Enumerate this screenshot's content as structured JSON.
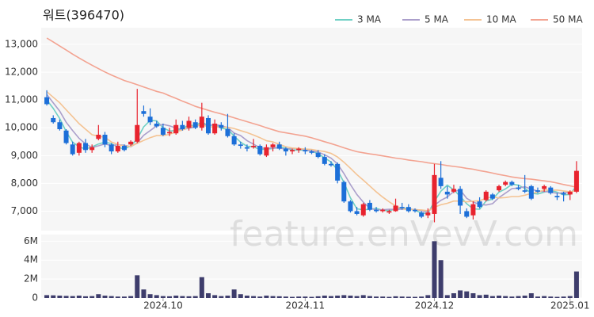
{
  "chart_data": {
    "type": "candlestick",
    "title": "워트(396470)",
    "watermark": "feature.enVevV.com",
    "categories": [
      null,
      null,
      null,
      null,
      null,
      null,
      null,
      null,
      null,
      null,
      null,
      null,
      null,
      null,
      null,
      null,
      null,
      null,
      "2024.10",
      null,
      null,
      null,
      null,
      null,
      null,
      null,
      null,
      null,
      null,
      null,
      null,
      null,
      null,
      null,
      null,
      null,
      null,
      null,
      null,
      null,
      "2024.11",
      null,
      null,
      null,
      null,
      null,
      null,
      null,
      null,
      null,
      null,
      null,
      null,
      null,
      null,
      null,
      null,
      null,
      null,
      null,
      "2024.12",
      null,
      null,
      null,
      null,
      null,
      null,
      null,
      null,
      null,
      null,
      null,
      null,
      null,
      null,
      null,
      null,
      null,
      null,
      null,
      null,
      "2025.01",
      null
    ],
    "open": [
      11100,
      10350,
      10200,
      9900,
      9400,
      9100,
      9450,
      9200,
      9600,
      9750,
      9400,
      9150,
      9350,
      9400,
      9500,
      10600,
      10400,
      10150,
      10000,
      9800,
      9800,
      10100,
      10000,
      10200,
      10000,
      10350,
      9800,
      10100,
      9950,
      9700,
      9400,
      9300,
      9300,
      9350,
      9000,
      9300,
      9400,
      9250,
      9150,
      9200,
      9200,
      9150,
      9100,
      8950,
      8700,
      8700,
      8050,
      7350,
      7000,
      6850,
      7300,
      7050,
      7000,
      6950,
      7000,
      7150,
      7150,
      7050,
      6950,
      6850,
      6900,
      8200,
      7700,
      7700,
      7800,
      7000,
      6850,
      7350,
      7400,
      7600,
      7750,
      7950,
      8050,
      7850,
      7750,
      7900,
      7750,
      7800,
      7850,
      7550,
      7650,
      7600,
      7700
    ],
    "high": [
      11350,
      10450,
      10300,
      9950,
      9500,
      9500,
      9600,
      9400,
      10100,
      9850,
      9450,
      9500,
      9400,
      9550,
      11400,
      10800,
      10700,
      10250,
      10150,
      10000,
      10300,
      10250,
      10400,
      10300,
      10900,
      10450,
      10300,
      10200,
      10500,
      9800,
      9500,
      9400,
      9600,
      9400,
      9400,
      9450,
      9500,
      9300,
      9250,
      9300,
      9300,
      9200,
      9200,
      9050,
      8800,
      8750,
      8100,
      7400,
      7150,
      7300,
      7400,
      7150,
      7100,
      7050,
      7450,
      7300,
      7250,
      7100,
      7000,
      7100,
      8700,
      8800,
      7900,
      7950,
      7900,
      7100,
      7350,
      7500,
      7750,
      7650,
      7950,
      8100,
      8100,
      7950,
      8300,
      7950,
      7850,
      7950,
      7900,
      7650,
      7700,
      7750,
      8800
    ],
    "low": [
      10800,
      10150,
      9900,
      9400,
      9000,
      9000,
      9100,
      9100,
      9550,
      9300,
      9050,
      9100,
      9150,
      9350,
      9450,
      10400,
      10100,
      10000,
      9700,
      9700,
      9750,
      9900,
      9900,
      9950,
      9900,
      9750,
      9750,
      9900,
      9650,
      9350,
      9250,
      9150,
      9250,
      9000,
      8950,
      9150,
      9200,
      9000,
      9050,
      9100,
      9050,
      9050,
      8900,
      8650,
      8600,
      8000,
      7300,
      6950,
      6850,
      6800,
      7000,
      6950,
      6950,
      6900,
      6980,
      7050,
      6950,
      6950,
      6750,
      6750,
      6600,
      7800,
      7450,
      7650,
      6900,
      6750,
      6700,
      7100,
      7350,
      7400,
      7700,
      7900,
      7900,
      7750,
      7650,
      7400,
      7650,
      7700,
      7600,
      7400,
      7350,
      7400,
      7650
    ],
    "close": [
      10850,
      10200,
      9950,
      9450,
      9050,
      9450,
      9200,
      9300,
      9750,
      9400,
      9150,
      9350,
      9200,
      9500,
      10100,
      10500,
      10200,
      10050,
      9750,
      9850,
      10100,
      9950,
      10250,
      10000,
      10400,
      9800,
      10150,
      10000,
      9700,
      9400,
      9350,
      9250,
      9350,
      9050,
      9300,
      9400,
      9250,
      9150,
      9200,
      9250,
      9150,
      9100,
      8950,
      8700,
      8650,
      8100,
      7350,
      7000,
      6900,
      7250,
      7050,
      7000,
      7050,
      7000,
      7200,
      7100,
      7000,
      7000,
      6800,
      6950,
      8300,
      7900,
      7600,
      7800,
      7200,
      6800,
      7250,
      7150,
      7700,
      7450,
      7900,
      8050,
      7950,
      7800,
      7700,
      7450,
      7700,
      7900,
      7650,
      7500,
      7600,
      7700,
      8450
    ],
    "up_color": "#e8232e",
    "down_color": "#1c6fd8",
    "ylim": [
      6300,
      13600
    ],
    "yticks": [
      {
        "value": 7000,
        "label": "7,000"
      },
      {
        "value": 8000,
        "label": "8,000"
      },
      {
        "value": 9000,
        "label": "9,000"
      },
      {
        "value": 10000,
        "label": "10,000"
      },
      {
        "value": 11000,
        "label": "11,000"
      },
      {
        "value": 12000,
        "label": "12,000"
      },
      {
        "value": 13000,
        "label": "13,000"
      }
    ],
    "series": [
      {
        "name": "3 MA",
        "color": "#6fd0c4",
        "values": [
          11000,
          10700,
          10333,
          9867,
          9483,
          9317,
          9233,
          9317,
          9417,
          9483,
          9433,
          9300,
          9233,
          9350,
          9600,
          10033,
          10267,
          10250,
          10000,
          9883,
          9900,
          9967,
          10100,
          10067,
          10217,
          10067,
          10117,
          9983,
          9950,
          9700,
          9483,
          9333,
          9317,
          9217,
          9233,
          9250,
          9317,
          9267,
          9200,
          9200,
          9200,
          9167,
          9067,
          8917,
          8767,
          8483,
          8033,
          7483,
          7083,
          7050,
          7067,
          7100,
          7033,
          7017,
          7083,
          7100,
          7100,
          7033,
          6933,
          6917,
          7350,
          7717,
          7933,
          7767,
          7533,
          7267,
          7083,
          7067,
          7367,
          7433,
          7683,
          7800,
          7967,
          7933,
          7817,
          7650,
          7617,
          7683,
          7750,
          7683,
          7583,
          7600,
          7917
        ]
      },
      {
        "name": "5 MA",
        "color": "#ab9fcb",
        "values": [
          11200,
          10900,
          10600,
          10200,
          9900,
          9620,
          9420,
          9290,
          9350,
          9420,
          9360,
          9390,
          9370,
          9320,
          9460,
          9730,
          9900,
          10070,
          10120,
          10070,
          9990,
          9940,
          9980,
          10030,
          10140,
          10080,
          10120,
          10070,
          10010,
          9810,
          9720,
          9540,
          9410,
          9280,
          9260,
          9270,
          9270,
          9230,
          9260,
          9250,
          9200,
          9170,
          9130,
          9030,
          8910,
          8700,
          8350,
          7960,
          7600,
          7320,
          7110,
          7040,
          7050,
          7070,
          7060,
          7070,
          7070,
          7060,
          7020,
          6970,
          7210,
          7390,
          7510,
          7710,
          7760,
          7460,
          7330,
          7240,
          7220,
          7270,
          7490,
          7650,
          7810,
          7830,
          7880,
          7790,
          7720,
          7710,
          7680,
          7640,
          7670,
          7670,
          7780
        ]
      },
      {
        "name": "10 MA",
        "color": "#f4c393",
        "values": [
          11300,
          11100,
          10900,
          10650,
          10400,
          10150,
          9950,
          9750,
          9700,
          9660,
          9490,
          9405,
          9330,
          9335,
          9440,
          9545,
          9645,
          9720,
          9720,
          9765,
          9860,
          9920,
          10025,
          10075,
          10105,
          10035,
          10030,
          10025,
          10020,
          9975,
          9900,
          9830,
          9740,
          9645,
          9535,
          9495,
          9405,
          9320,
          9270,
          9255,
          9235,
          9220,
          9180,
          9145,
          9080,
          8950,
          8760,
          8545,
          8315,
          8115,
          7905,
          7695,
          7505,
          7335,
          7190,
          7090,
          7055,
          7055,
          7045,
          7015,
          7140,
          7230,
          7285,
          7365,
          7365,
          7335,
          7360,
          7375,
          7465,
          7515,
          7475,
          7490,
          7525,
          7525,
          7575,
          7640,
          7685,
          7760,
          7755,
          7760,
          7730,
          7695,
          7745
        ]
      },
      {
        "name": "50 MA",
        "color": "#f3a391",
        "values": [
          13230,
          13090,
          12940,
          12800,
          12650,
          12510,
          12380,
          12250,
          12130,
          12010,
          11900,
          11800,
          11700,
          11630,
          11550,
          11470,
          11390,
          11310,
          11250,
          11150,
          11060,
          10960,
          10870,
          10770,
          10700,
          10630,
          10560,
          10500,
          10430,
          10360,
          10290,
          10220,
          10150,
          10080,
          10000,
          9930,
          9860,
          9820,
          9780,
          9740,
          9700,
          9640,
          9570,
          9500,
          9430,
          9360,
          9280,
          9210,
          9140,
          9100,
          9060,
          9030,
          8990,
          8950,
          8910,
          8880,
          8840,
          8810,
          8780,
          8740,
          8710,
          8680,
          8640,
          8610,
          8580,
          8540,
          8510,
          8460,
          8420,
          8370,
          8320,
          8280,
          8230,
          8200,
          8170,
          8150,
          8120,
          8090,
          8060,
          8010,
          7960,
          7910,
          7860
        ]
      }
    ],
    "volume": {
      "color": "#3e3d6c",
      "ylim": [
        0,
        6700000
      ],
      "yticks": [
        0,
        {
          "value": 2000000,
          "label": "2M"
        },
        {
          "value": 4000000,
          "label": "4M"
        },
        {
          "value": 6000000,
          "label": "6M"
        }
      ],
      "values": [
        300000,
        280000,
        250000,
        220000,
        200000,
        250000,
        180000,
        200000,
        400000,
        250000,
        200000,
        150000,
        150000,
        200000,
        2400000,
        900000,
        400000,
        300000,
        200000,
        180000,
        250000,
        200000,
        180000,
        200000,
        2200000,
        500000,
        300000,
        200000,
        250000,
        900000,
        400000,
        250000,
        200000,
        150000,
        250000,
        200000,
        180000,
        150000,
        120000,
        150000,
        150000,
        120000,
        180000,
        250000,
        200000,
        250000,
        300000,
        250000,
        200000,
        300000,
        200000,
        150000,
        150000,
        120000,
        180000,
        150000,
        130000,
        120000,
        150000,
        300000,
        6000000,
        4000000,
        300000,
        500000,
        800000,
        700000,
        500000,
        300000,
        350000,
        200000,
        250000,
        200000,
        150000,
        200000,
        250000,
        500000,
        150000,
        200000,
        150000,
        120000,
        150000,
        200000,
        2800000
      ]
    }
  }
}
